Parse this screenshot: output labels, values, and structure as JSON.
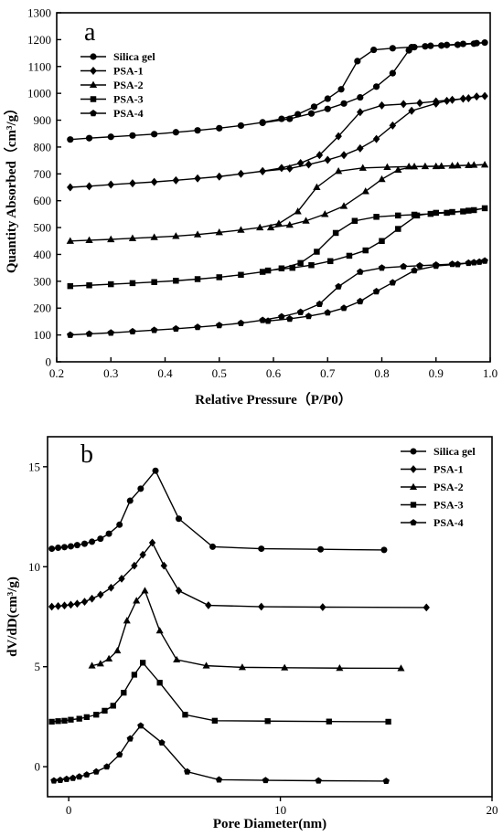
{
  "chart_data": [
    {
      "panel_label": "a",
      "type": "line",
      "xlabel": "Relative Pressure（P/P0）",
      "ylabel": "Quantity Absorbed（cm³/g）",
      "xlim": [
        0.2,
        1.0
      ],
      "ylim": [
        0,
        1300
      ],
      "xticks": [
        "0.2",
        "0.3",
        "0.4",
        "0.5",
        "0.6",
        "0.7",
        "0.8",
        "0.9",
        "1.0"
      ],
      "yticks": [
        "0",
        "100",
        "200",
        "300",
        "400",
        "500",
        "600",
        "700",
        "800",
        "900",
        "1000",
        "1100",
        "1200",
        "1300"
      ],
      "legend_position": "top-left",
      "series": [
        {
          "name": "Silica gel",
          "marker": "circle",
          "points": [
            [
              0.225,
              828
            ],
            [
              0.26,
              833
            ],
            [
              0.3,
              838
            ],
            [
              0.34,
              843
            ],
            [
              0.38,
              848
            ],
            [
              0.42,
              855
            ],
            [
              0.46,
              862
            ],
            [
              0.5,
              870
            ],
            [
              0.54,
              880
            ],
            [
              0.58,
              892
            ],
            [
              0.615,
              905
            ],
            [
              0.645,
              922
            ],
            [
              0.675,
              950
            ],
            [
              0.7,
              980
            ],
            [
              0.725,
              1015
            ],
            [
              0.755,
              1120
            ],
            [
              0.785,
              1162
            ],
            [
              0.82,
              1168
            ],
            [
              0.855,
              1172
            ],
            [
              0.88,
              1175
            ],
            [
              0.91,
              1178
            ],
            [
              0.94,
              1181
            ],
            [
              0.97,
              1185
            ],
            [
              0.99,
              1189
            ],
            [
              0.975,
              1187
            ],
            [
              0.95,
              1184
            ],
            [
              0.92,
              1180
            ],
            [
              0.89,
              1177
            ],
            [
              0.86,
              1172
            ],
            [
              0.85,
              1160
            ],
            [
              0.82,
              1075
            ],
            [
              0.79,
              1025
            ],
            [
              0.76,
              985
            ],
            [
              0.73,
              962
            ],
            [
              0.7,
              942
            ],
            [
              0.67,
              925
            ],
            [
              0.63,
              905
            ],
            [
              0.58,
              890
            ]
          ]
        },
        {
          "name": "PSA-1",
          "marker": "diamond",
          "points": [
            [
              0.225,
              650
            ],
            [
              0.26,
              654
            ],
            [
              0.3,
              660
            ],
            [
              0.34,
              665
            ],
            [
              0.38,
              670
            ],
            [
              0.42,
              676
            ],
            [
              0.46,
              683
            ],
            [
              0.5,
              690
            ],
            [
              0.54,
              700
            ],
            [
              0.58,
              710
            ],
            [
              0.615,
              722
            ],
            [
              0.65,
              740
            ],
            [
              0.685,
              770
            ],
            [
              0.72,
              840
            ],
            [
              0.76,
              930
            ],
            [
              0.8,
              955
            ],
            [
              0.84,
              960
            ],
            [
              0.87,
              964
            ],
            [
              0.9,
              970
            ],
            [
              0.93,
              976
            ],
            [
              0.96,
              982
            ],
            [
              0.99,
              990
            ],
            [
              0.975,
              988
            ],
            [
              0.95,
              980
            ],
            [
              0.92,
              972
            ],
            [
              0.9,
              962
            ],
            [
              0.855,
              935
            ],
            [
              0.82,
              880
            ],
            [
              0.79,
              830
            ],
            [
              0.76,
              795
            ],
            [
              0.73,
              770
            ],
            [
              0.7,
              752
            ],
            [
              0.665,
              735
            ],
            [
              0.63,
              720
            ],
            [
              0.58,
              710
            ]
          ]
        },
        {
          "name": "PSA-2",
          "marker": "triangle",
          "points": [
            [
              0.225,
              450
            ],
            [
              0.26,
              453
            ],
            [
              0.3,
              456
            ],
            [
              0.34,
              460
            ],
            [
              0.38,
              464
            ],
            [
              0.42,
              468
            ],
            [
              0.46,
              474
            ],
            [
              0.5,
              482
            ],
            [
              0.54,
              491
            ],
            [
              0.575,
              500
            ],
            [
              0.61,
              515
            ],
            [
              0.645,
              560
            ],
            [
              0.68,
              650
            ],
            [
              0.72,
              710
            ],
            [
              0.765,
              722
            ],
            [
              0.81,
              725
            ],
            [
              0.85,
              727
            ],
            [
              0.88,
              728
            ],
            [
              0.91,
              729
            ],
            [
              0.94,
              731
            ],
            [
              0.97,
              733
            ],
            [
              0.99,
              734
            ],
            [
              0.96,
              732
            ],
            [
              0.93,
              730
            ],
            [
              0.9,
              728
            ],
            [
              0.86,
              727
            ],
            [
              0.83,
              715
            ],
            [
              0.8,
              680
            ],
            [
              0.77,
              635
            ],
            [
              0.73,
              580
            ],
            [
              0.695,
              550
            ],
            [
              0.66,
              525
            ],
            [
              0.63,
              510
            ],
            [
              0.595,
              500
            ]
          ]
        },
        {
          "name": "PSA-3",
          "marker": "square",
          "points": [
            [
              0.225,
              282
            ],
            [
              0.26,
              285
            ],
            [
              0.3,
              289
            ],
            [
              0.34,
              293
            ],
            [
              0.38,
              297
            ],
            [
              0.42,
              302
            ],
            [
              0.46,
              308
            ],
            [
              0.5,
              315
            ],
            [
              0.54,
              324
            ],
            [
              0.58,
              335
            ],
            [
              0.615,
              348
            ],
            [
              0.65,
              368
            ],
            [
              0.68,
              410
            ],
            [
              0.715,
              480
            ],
            [
              0.75,
              525
            ],
            [
              0.79,
              540
            ],
            [
              0.83,
              545
            ],
            [
              0.86,
              548
            ],
            [
              0.89,
              551
            ],
            [
              0.92,
              555
            ],
            [
              0.95,
              560
            ],
            [
              0.97,
              565
            ],
            [
              0.99,
              572
            ],
            [
              0.96,
              563
            ],
            [
              0.93,
              558
            ],
            [
              0.9,
              555
            ],
            [
              0.865,
              545
            ],
            [
              0.83,
              495
            ],
            [
              0.8,
              450
            ],
            [
              0.77,
              415
            ],
            [
              0.74,
              395
            ],
            [
              0.705,
              375
            ],
            [
              0.67,
              360
            ],
            [
              0.635,
              350
            ],
            [
              0.59,
              340
            ]
          ]
        },
        {
          "name": "PSA-4",
          "marker": "pentagon",
          "points": [
            [
              0.225,
              100
            ],
            [
              0.26,
              104
            ],
            [
              0.3,
              108
            ],
            [
              0.34,
              113
            ],
            [
              0.38,
              118
            ],
            [
              0.42,
              123
            ],
            [
              0.46,
              129
            ],
            [
              0.5,
              136
            ],
            [
              0.54,
              144
            ],
            [
              0.58,
              155
            ],
            [
              0.615,
              168
            ],
            [
              0.65,
              185
            ],
            [
              0.685,
              215
            ],
            [
              0.72,
              280
            ],
            [
              0.76,
              335
            ],
            [
              0.8,
              350
            ],
            [
              0.84,
              355
            ],
            [
              0.87,
              358
            ],
            [
              0.9,
              361
            ],
            [
              0.93,
              364
            ],
            [
              0.96,
              368
            ],
            [
              0.98,
              372
            ],
            [
              0.99,
              376
            ],
            [
              0.97,
              370
            ],
            [
              0.94,
              363
            ],
            [
              0.9,
              357
            ],
            [
              0.86,
              340
            ],
            [
              0.82,
              295
            ],
            [
              0.79,
              262
            ],
            [
              0.76,
              225
            ],
            [
              0.73,
              200
            ],
            [
              0.7,
              183
            ],
            [
              0.665,
              170
            ],
            [
              0.63,
              160
            ],
            [
              0.59,
              152
            ]
          ]
        }
      ]
    },
    {
      "panel_label": "b",
      "type": "line",
      "xlabel": "Pore Diameter(nm)",
      "ylabel": "dV/dD(cm³/g)",
      "xlim": [
        -1,
        20
      ],
      "ylim": [
        -1.5,
        16.5
      ],
      "xticks": [
        "0",
        "10",
        "20"
      ],
      "yticks": [
        "0",
        "5",
        "10",
        "15"
      ],
      "legend_position": "top-right",
      "series": [
        {
          "name": "Silica gel",
          "marker": "circle",
          "points": [
            [
              -0.8,
              10.9
            ],
            [
              -0.5,
              10.95
            ],
            [
              -0.2,
              10.98
            ],
            [
              0.1,
              11.02
            ],
            [
              0.4,
              11.08
            ],
            [
              0.75,
              11.15
            ],
            [
              1.1,
              11.25
            ],
            [
              1.5,
              11.4
            ],
            [
              1.9,
              11.65
            ],
            [
              2.4,
              12.1
            ],
            [
              2.9,
              13.3
            ],
            [
              3.4,
              13.9
            ],
            [
              4.1,
              14.8
            ],
            [
              5.2,
              12.4
            ],
            [
              6.8,
              11.0
            ],
            [
              9.1,
              10.9
            ],
            [
              11.9,
              10.87
            ],
            [
              14.9,
              10.84
            ]
          ]
        },
        {
          "name": "PSA-1",
          "marker": "diamond",
          "points": [
            [
              -0.8,
              8.0
            ],
            [
              -0.5,
              8.03
            ],
            [
              -0.2,
              8.06
            ],
            [
              0.1,
              8.1
            ],
            [
              0.4,
              8.15
            ],
            [
              0.75,
              8.25
            ],
            [
              1.1,
              8.4
            ],
            [
              1.5,
              8.6
            ],
            [
              2.0,
              8.95
            ],
            [
              2.5,
              9.4
            ],
            [
              3.1,
              10.05
            ],
            [
              3.5,
              10.6
            ],
            [
              3.95,
              11.2
            ],
            [
              4.5,
              10.05
            ],
            [
              5.2,
              8.8
            ],
            [
              6.6,
              8.07
            ],
            [
              9.1,
              8.0
            ],
            [
              12.0,
              7.98
            ],
            [
              16.9,
              7.96
            ]
          ]
        },
        {
          "name": "PSA-2",
          "marker": "triangle",
          "points": [
            [
              1.1,
              5.05
            ],
            [
              1.5,
              5.15
            ],
            [
              1.9,
              5.4
            ],
            [
              2.3,
              5.8
            ],
            [
              2.75,
              7.3
            ],
            [
              3.2,
              8.3
            ],
            [
              3.6,
              8.8
            ],
            [
              4.3,
              6.8
            ],
            [
              5.1,
              5.35
            ],
            [
              6.5,
              5.05
            ],
            [
              8.2,
              4.97
            ],
            [
              10.2,
              4.95
            ],
            [
              12.8,
              4.93
            ],
            [
              15.7,
              4.92
            ]
          ]
        },
        {
          "name": "PSA-3",
          "marker": "square",
          "points": [
            [
              -0.8,
              2.25
            ],
            [
              -0.5,
              2.28
            ],
            [
              -0.2,
              2.3
            ],
            [
              0.1,
              2.35
            ],
            [
              0.5,
              2.4
            ],
            [
              0.85,
              2.48
            ],
            [
              1.3,
              2.6
            ],
            [
              1.7,
              2.8
            ],
            [
              2.1,
              3.05
            ],
            [
              2.6,
              3.7
            ],
            [
              3.1,
              4.6
            ],
            [
              3.5,
              5.2
            ],
            [
              4.3,
              4.2
            ],
            [
              5.5,
              2.6
            ],
            [
              6.9,
              2.3
            ],
            [
              9.4,
              2.28
            ],
            [
              12.3,
              2.26
            ],
            [
              15.1,
              2.25
            ]
          ]
        },
        {
          "name": "PSA-4",
          "marker": "pentagon",
          "points": [
            [
              -0.7,
              -0.7
            ],
            [
              -0.4,
              -0.67
            ],
            [
              -0.1,
              -0.62
            ],
            [
              0.2,
              -0.57
            ],
            [
              0.5,
              -0.5
            ],
            [
              0.85,
              -0.4
            ],
            [
              1.3,
              -0.25
            ],
            [
              1.8,
              0.0
            ],
            [
              2.4,
              0.6
            ],
            [
              2.9,
              1.4
            ],
            [
              3.4,
              2.05
            ],
            [
              4.4,
              1.2
            ],
            [
              5.6,
              -0.25
            ],
            [
              7.1,
              -0.65
            ],
            [
              9.3,
              -0.68
            ],
            [
              11.8,
              -0.7
            ],
            [
              15.0,
              -0.72
            ]
          ]
        }
      ]
    }
  ]
}
